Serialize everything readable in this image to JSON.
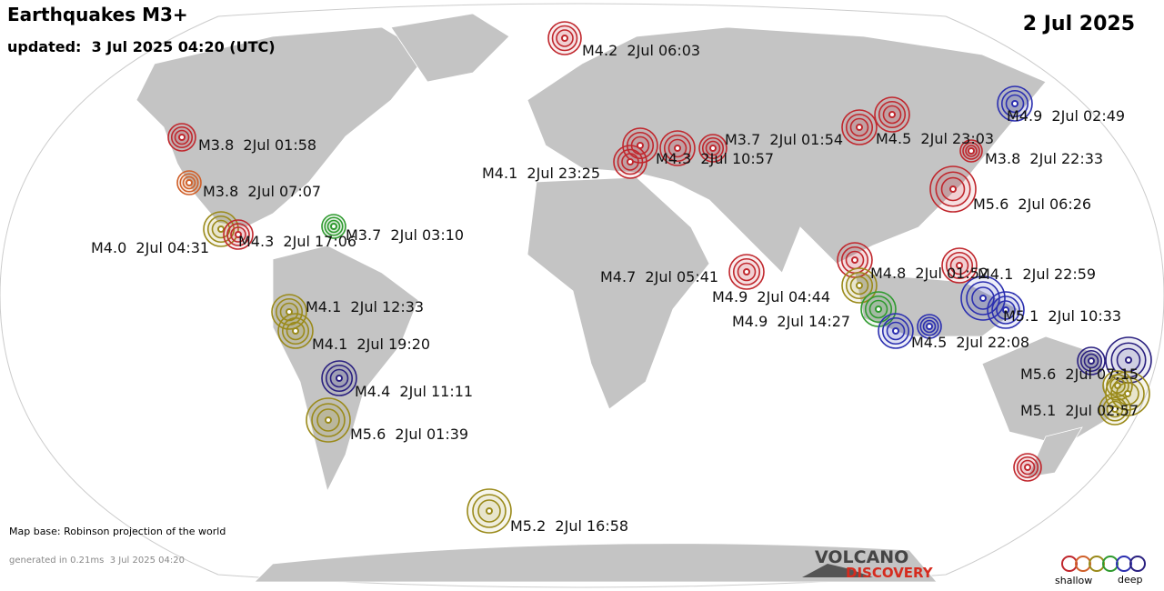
{
  "header": {
    "title": "Earthquakes M3+",
    "updated": "updated:  3 Jul 2025 04:20 (UTC)",
    "date": "2 Jul 2025"
  },
  "quakes": [
    {
      "label": "M4.2  2Jul 06:03",
      "color": "#c0272d"
    },
    {
      "label": "M4.9  2Jul 02:49",
      "color": "#2b2fb0"
    },
    {
      "label": "M3.8  2Jul 01:58",
      "color": "#c0272d"
    },
    {
      "label": "M3.7  2Jul 01:54",
      "color": "#c0272d"
    },
    {
      "label": "M4.5  2Jul 23:03",
      "color": "#c0272d"
    },
    {
      "label": "M4.3  2Jul 10:57",
      "color": "#c0272d"
    },
    {
      "label": "M3.8  2Jul 22:33",
      "color": "#c0272d"
    },
    {
      "label": "M4.1  2Jul 23:25",
      "color": "#c0272d"
    },
    {
      "label": "M3.8  2Jul 07:07",
      "color": "#d0602a"
    },
    {
      "label": "M5.6  2Jul 06:26",
      "color": "#c0272d"
    },
    {
      "label": "M4.0  2Jul 04:31",
      "color": "#9a8a1a"
    },
    {
      "label": "M4.3  2Jul 17:06",
      "color": "#c0272d"
    },
    {
      "label": "M3.7  2Jul 03:10",
      "color": "#2e9a2e"
    },
    {
      "label": "M4.7  2Jul 05:41",
      "color": "#c0272d"
    },
    {
      "label": "M4.8  2Jul 01:52",
      "color": "#c0272d"
    },
    {
      "label": "M4.1  2Jul 22:59",
      "color": "#c0272d"
    },
    {
      "label": "M4.9  2Jul 04:44",
      "color": "#9a8a1a"
    },
    {
      "label": "M4.1  2Jul 12:33",
      "color": "#9a8a1a"
    },
    {
      "label": "M5.1  2Jul 10:33",
      "color": "#2b2fb0"
    },
    {
      "label": "M4.9  2Jul 14:27",
      "color": "#2e9a2e"
    },
    {
      "label": "M4.1  2Jul 19:20",
      "color": "#9a8a1a"
    },
    {
      "label": "M4.5  2Jul 22:08",
      "color": "#2b2fb0"
    },
    {
      "label": "M4.4  2Jul 11:11",
      "color": "#2a2080"
    },
    {
      "label": "M5.6  2Jul 07:15",
      "color": "#2a2080"
    },
    {
      "label": "M5.1  2Jul 02:57",
      "color": "#9a8a1a"
    },
    {
      "label": "M5.6  2Jul 01:39",
      "color": "#9a8a1a"
    },
    {
      "label": "M5.2  2Jul 16:58",
      "color": "#9a8a1a"
    }
  ],
  "footer": {
    "map_base": "Map base: Robinson projection of the world",
    "generated": "generated in 0.21ms  3 Jul 2025 04:20"
  },
  "logo": {
    "line1": "VOLCANO",
    "line2": "DISCOVERY"
  },
  "legend": {
    "shallow": "shallow",
    "deep": "deep"
  }
}
